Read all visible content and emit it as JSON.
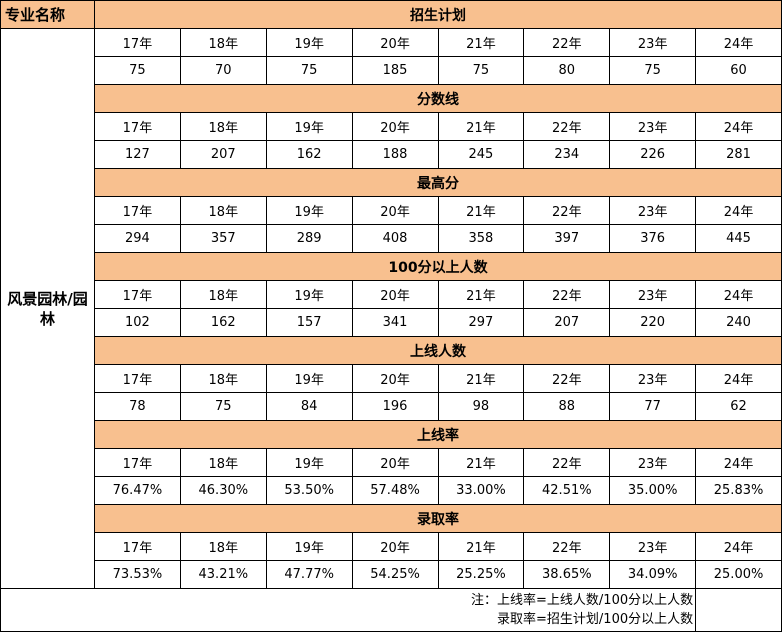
{
  "header": {
    "major_column": "专业名称"
  },
  "major": "风景园林/园林",
  "years": [
    "17年",
    "18年",
    "19年",
    "20年",
    "21年",
    "22年",
    "23年",
    "24年"
  ],
  "sections": [
    {
      "title": "招生计划",
      "values": [
        "75",
        "70",
        "75",
        "185",
        "75",
        "80",
        "75",
        "60"
      ]
    },
    {
      "title": "分数线",
      "values": [
        "127",
        "207",
        "162",
        "188",
        "245",
        "234",
        "226",
        "281"
      ]
    },
    {
      "title": "最高分",
      "values": [
        "294",
        "357",
        "289",
        "408",
        "358",
        "397",
        "376",
        "445"
      ]
    },
    {
      "title": "100分以上人数",
      "values": [
        "102",
        "162",
        "157",
        "341",
        "297",
        "207",
        "220",
        "240"
      ]
    },
    {
      "title": "上线人数",
      "values": [
        "78",
        "75",
        "84",
        "196",
        "98",
        "88",
        "77",
        "62"
      ]
    },
    {
      "title": "上线率",
      "values": [
        "76.47%",
        "46.30%",
        "53.50%",
        "57.48%",
        "33.00%",
        "42.51%",
        "35.00%",
        "25.83%"
      ]
    },
    {
      "title": "录取率",
      "values": [
        "73.53%",
        "43.21%",
        "47.77%",
        "54.25%",
        "25.25%",
        "38.65%",
        "34.09%",
        "25.00%"
      ]
    }
  ],
  "note": {
    "line1": "注：上线率=上线人数/100分以上人数",
    "line2": "录取率=招生计划/100分以上人数"
  },
  "colors": {
    "header_fill": "#f8c08f",
    "border": "#000000"
  }
}
